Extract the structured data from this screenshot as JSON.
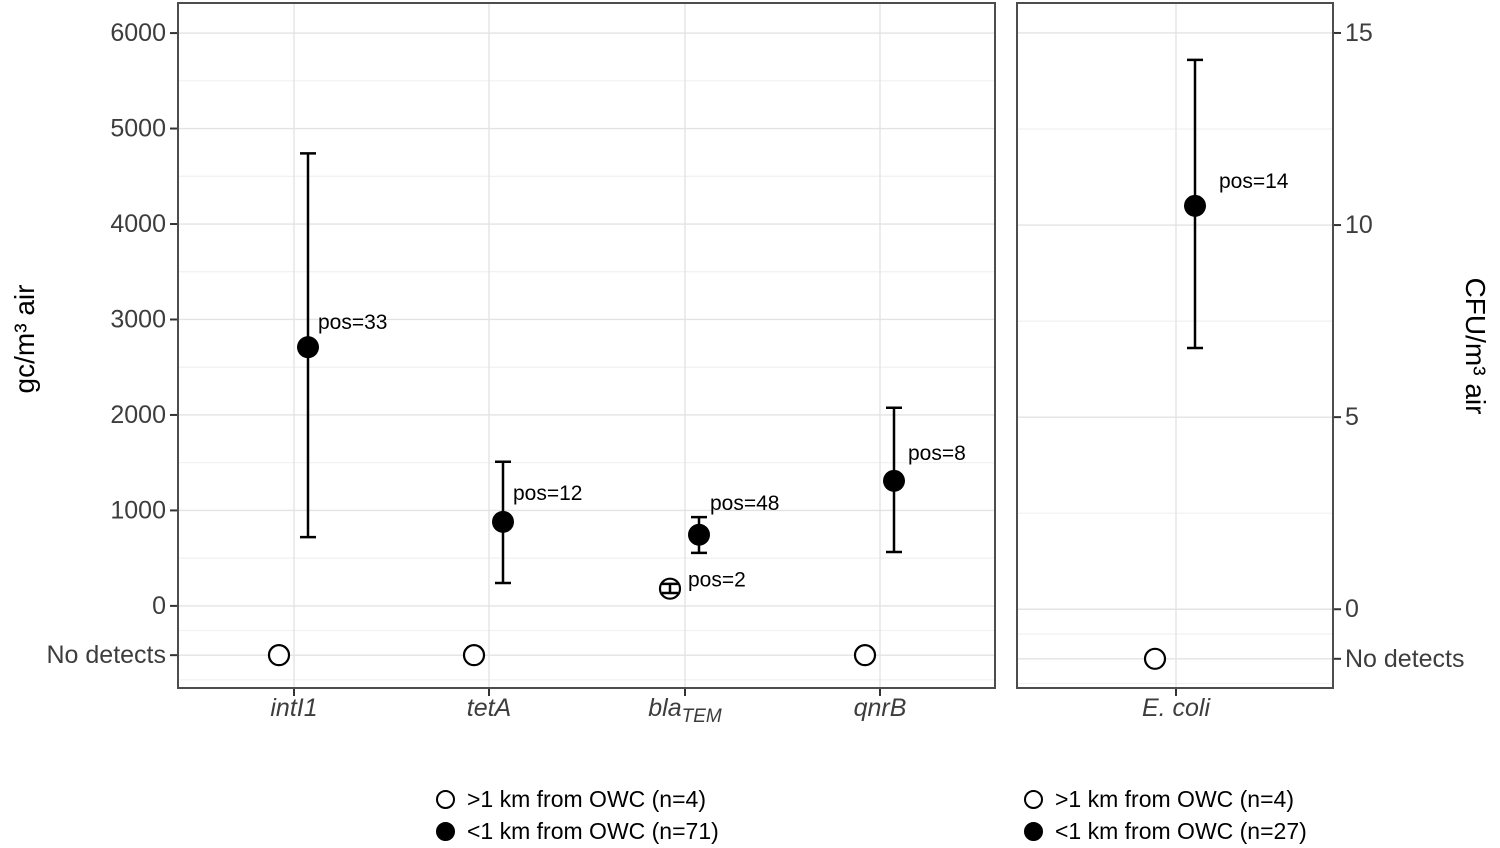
{
  "figure": {
    "background": "#ffffff",
    "point_color": "#000000",
    "axis_text_color": "#3d3d3d",
    "panel_border_color": "#4d4d4d",
    "grid_major_color": "#e3e3e3",
    "grid_minor_color": "#f1f1f1",
    "tick_color": "#333333"
  },
  "chart_data": [
    {
      "type": "scatter",
      "title": "",
      "xlabel": "",
      "ylabel": "gc/m³ air",
      "grid": true,
      "legend_position": "bottom",
      "ylim": [
        -860,
        6315
      ],
      "ybreaks": [
        {
          "value": 6000,
          "label": "6000"
        },
        {
          "value": 5000,
          "label": "5000"
        },
        {
          "value": 4000,
          "label": "4000"
        },
        {
          "value": 3000,
          "label": "3000"
        },
        {
          "value": 2000,
          "label": "2000"
        },
        {
          "value": 1000,
          "label": "1000"
        },
        {
          "value": 0,
          "label": "0"
        },
        {
          "value": -516,
          "label": "No detects"
        }
      ],
      "yminor": [
        5500,
        4500,
        3500,
        2500,
        1500,
        500,
        -258,
        -774
      ],
      "no_detects_value": -516,
      "categories": [
        {
          "label": "intI1",
          "subscript": ""
        },
        {
          "label": "tetA",
          "subscript": ""
        },
        {
          "label": "bla",
          "subscript": "TEM"
        },
        {
          "label": "qnrB",
          "subscript": ""
        }
      ],
      "series": [
        {
          "name": ">1 km from OWC (n=4)",
          "marker": "open",
          "points": [
            {
              "category": 0,
              "value": "No detects"
            },
            {
              "category": 1,
              "value": "No detects"
            },
            {
              "category": 2,
              "value": 180,
              "ci_low": 135,
              "ci_high": 230,
              "annotation": "pos=2",
              "label_offset": [
                18,
                -9
              ]
            },
            {
              "category": 3,
              "value": "No detects"
            }
          ]
        },
        {
          "name": "<1 km from OWC (n=71)",
          "marker": "filled",
          "points": [
            {
              "category": 0,
              "value": 2710,
              "ci_low": 720,
              "ci_high": 4740,
              "annotation": "pos=33",
              "label_offset": [
                10,
                -25
              ]
            },
            {
              "category": 1,
              "value": 880,
              "ci_low": 240,
              "ci_high": 1510,
              "annotation": "pos=12",
              "label_offset": [
                10,
                -29
              ]
            },
            {
              "category": 2,
              "value": 745,
              "ci_low": 555,
              "ci_high": 930,
              "annotation": "pos=48",
              "label_offset": [
                11,
                -32
              ]
            },
            {
              "category": 3,
              "value": 1310,
              "ci_low": 565,
              "ci_high": 2075,
              "annotation": "pos=8",
              "label_offset": [
                14,
                -28
              ]
            }
          ]
        }
      ]
    },
    {
      "type": "scatter",
      "title": "",
      "xlabel": "",
      "ylabel": "CFU/m³ air",
      "grid": true,
      "legend_position": "bottom",
      "ylim": [
        -2.05,
        15.78
      ],
      "ybreaks": [
        {
          "value": 15,
          "label": "15"
        },
        {
          "value": 10,
          "label": "10"
        },
        {
          "value": 5,
          "label": "5"
        },
        {
          "value": 0,
          "label": "0"
        },
        {
          "value": -1.29,
          "label": "No detects"
        }
      ],
      "yminor": [
        12.5,
        7.5,
        2.5,
        -0.645,
        -1.935
      ],
      "no_detects_value": -1.29,
      "categories": [
        {
          "label": "E. coli",
          "subscript": ""
        }
      ],
      "series": [
        {
          "name": ">1 km from OWC (n=4)",
          "marker": "open",
          "points": [
            {
              "category": 0,
              "value": "No detects"
            }
          ]
        },
        {
          "name": "<1 km from OWC (n=27)",
          "marker": "filled",
          "points": [
            {
              "category": 0,
              "value": 10.5,
              "ci_low": 6.8,
              "ci_high": 14.3,
              "annotation": "pos=14",
              "label_offset": [
                24,
                -25
              ]
            }
          ]
        }
      ]
    }
  ],
  "legends": [
    {
      "items": [
        {
          "marker": "open",
          "label": ">1 km from OWC (n=4)"
        },
        {
          "marker": "filled",
          "label": "<1 km from OWC (n=71)"
        }
      ]
    },
    {
      "items": [
        {
          "marker": "open",
          "label": ">1 km from OWC (n=4)"
        },
        {
          "marker": "filled",
          "label": "<1 km from OWC (n=27)"
        }
      ]
    }
  ]
}
